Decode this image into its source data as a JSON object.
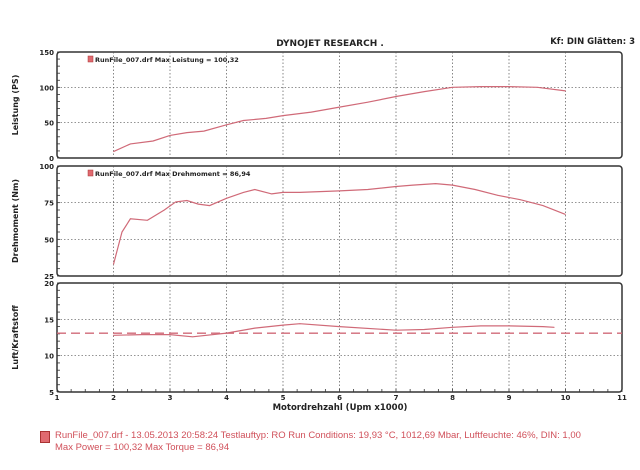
{
  "header": {
    "title": "DYNOJET RESEARCH .",
    "settings": "Kf: DIN  Glätten: 3"
  },
  "colors": {
    "curve": "#d06a78",
    "grid": "#555555",
    "text": "#d0505a"
  },
  "chart_data": [
    {
      "type": "line",
      "ylabel": "Leistung (PS)",
      "legend": "RunFile_007.drf Max Leistung = 100,32",
      "ylim": [
        0,
        150
      ],
      "yticks": [
        "0",
        "50",
        "100",
        "150"
      ],
      "ytick_values": [
        0,
        50,
        100,
        150
      ],
      "x": [
        2.0,
        2.3,
        2.7,
        3.0,
        3.3,
        3.6,
        4.0,
        4.3,
        4.7,
        5.0,
        5.5,
        6.0,
        6.5,
        7.0,
        7.5,
        8.0,
        8.5,
        9.0,
        9.5,
        10.0
      ],
      "values": [
        9,
        20,
        24,
        32,
        36,
        38,
        47,
        53,
        56,
        60,
        65,
        72,
        79,
        87,
        94,
        100,
        101,
        101,
        100,
        95
      ]
    },
    {
      "type": "line",
      "ylabel": "Drehmoment (Nm)",
      "legend": "RunFile_007.drf Max Drehmoment = 86,94",
      "ylim": [
        25,
        100
      ],
      "yticks": [
        "25",
        "50",
        "75",
        "100"
      ],
      "ytick_values": [
        25,
        50,
        75,
        100
      ],
      "x": [
        2.0,
        2.15,
        2.3,
        2.6,
        2.9,
        3.1,
        3.3,
        3.5,
        3.7,
        4.0,
        4.3,
        4.5,
        4.8,
        5.0,
        5.3,
        6.0,
        6.5,
        7.0,
        7.3,
        7.7,
        8.0,
        8.4,
        8.8,
        9.2,
        9.6,
        10.0
      ],
      "values": [
        33,
        55,
        64,
        63,
        70,
        75.5,
        76.5,
        74,
        73,
        78,
        82,
        84,
        81,
        82,
        82,
        83,
        84,
        86,
        87,
        88,
        87,
        84,
        80,
        77,
        73,
        67
      ]
    },
    {
      "type": "line",
      "ylabel": "Luft/Kraftstoff",
      "ylim": [
        5,
        20
      ],
      "yticks": [
        "5",
        "10",
        "15",
        "20"
      ],
      "ytick_values": [
        5,
        10,
        15,
        20
      ],
      "x": [
        2.0,
        2.5,
        3.0,
        3.4,
        4.0,
        4.5,
        5.0,
        5.3,
        6.0,
        7.0,
        7.5,
        8.0,
        8.5,
        9.0,
        9.6,
        9.8
      ],
      "values": [
        12.8,
        12.9,
        12.9,
        12.6,
        13.1,
        13.8,
        14.2,
        14.4,
        14.0,
        13.5,
        13.6,
        13.9,
        14.1,
        14.1,
        14.0,
        13.9
      ],
      "reference_line": 13.1
    }
  ],
  "xaxis": {
    "label": "Motordrehzahl (Upm x1000)",
    "range": [
      1,
      11
    ],
    "ticks": [
      "1",
      "2",
      "3",
      "4",
      "5",
      "6",
      "7",
      "8",
      "9",
      "10",
      "11"
    ]
  },
  "footer": {
    "line1": "RunFile_007.drf - 13.05.2013 20:58:24  Testlauftyp: RO  Run Conditions: 19,93 °C, 1012,69 Mbar,  Luftfeuchte: 46%, DIN: 1,00",
    "line2": "Max Power = 100,32  Max Torque = 86,94"
  }
}
